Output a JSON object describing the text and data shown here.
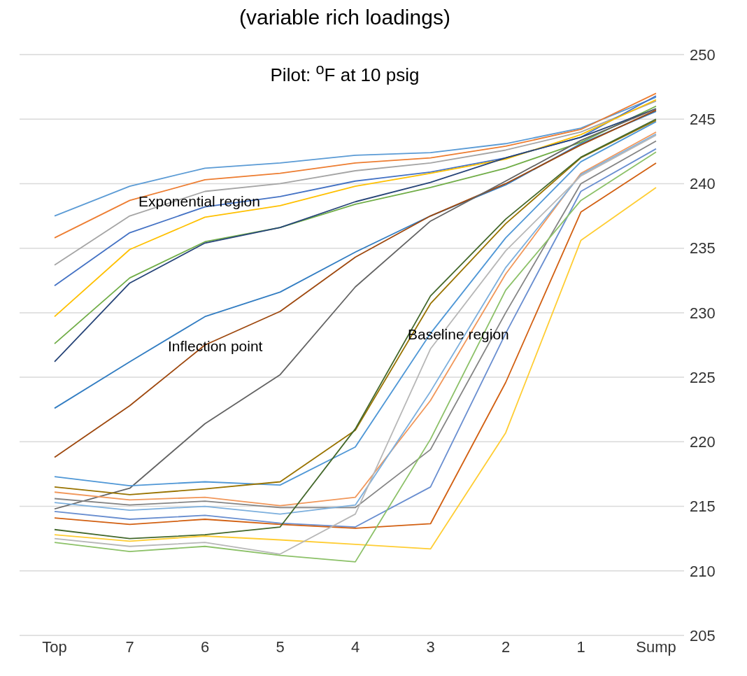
{
  "chart_data": {
    "type": "line",
    "title": "(variable rich loadings)",
    "subtitle": "Pilot:  $^{o}$F at 10 psig",
    "categories": [
      "Top",
      "7",
      "6",
      "5",
      "4",
      "3",
      "2",
      "1",
      "Sump"
    ],
    "ylim": [
      205,
      250
    ],
    "yticks": [
      205,
      210,
      215,
      220,
      225,
      230,
      235,
      240,
      245,
      250
    ],
    "grid": "y",
    "annotations": [
      "Exponential region",
      "Inflection point",
      "Baseline region"
    ],
    "series": [
      {
        "color": "#5b9bd5",
        "values": [
          237.5,
          239.8,
          241.2,
          241.6,
          242.2,
          242.4,
          243.1,
          244.3,
          246.7
        ]
      },
      {
        "color": "#ed7d31",
        "values": [
          235.8,
          238.7,
          240.3,
          240.8,
          241.6,
          242.0,
          242.9,
          244.2,
          247.0
        ]
      },
      {
        "color": "#a5a5a5",
        "values": [
          233.7,
          237.5,
          239.4,
          240.0,
          241.0,
          241.6,
          242.6,
          244.0,
          246.4
        ]
      },
      {
        "color": "#4472c4",
        "values": [
          232.1,
          236.2,
          238.2,
          239.0,
          240.2,
          240.9,
          242.0,
          243.6,
          246.8
        ]
      },
      {
        "color": "#ffc000",
        "values": [
          229.7,
          234.9,
          237.4,
          238.3,
          239.8,
          240.8,
          241.9,
          243.8,
          246.5
        ]
      },
      {
        "color": "#70ad47",
        "values": [
          227.6,
          232.7,
          235.5,
          236.6,
          238.4,
          239.7,
          241.2,
          243.2,
          246.0
        ]
      },
      {
        "color": "#264478",
        "values": [
          226.2,
          232.3,
          235.4,
          236.6,
          238.6,
          240.1,
          242.0,
          243.6,
          245.8
        ]
      },
      {
        "color": "#327dc2",
        "values": [
          222.6,
          226.2,
          229.7,
          231.6,
          234.7,
          237.5,
          239.9,
          243.1,
          245.6
        ]
      },
      {
        "color": "#9e480e",
        "values": [
          218.8,
          222.8,
          227.5,
          230.1,
          234.3,
          237.5,
          240.0,
          243.0,
          245.7
        ]
      },
      {
        "color": "#636363",
        "values": [
          214.8,
          216.4,
          221.4,
          225.2,
          232.0,
          237.1,
          240.2,
          243.35,
          245.8
        ]
      },
      {
        "color": "#4f97d6",
        "values": [
          217.3,
          216.6,
          216.9,
          216.65,
          219.6,
          228.4,
          235.8,
          241.7,
          244.8
        ]
      },
      {
        "color": "#997300",
        "values": [
          216.5,
          215.9,
          216.35,
          216.9,
          220.9,
          230.7,
          236.9,
          242.0,
          244.9
        ]
      },
      {
        "color": "#f1975a",
        "values": [
          216.1,
          215.5,
          215.7,
          215.05,
          215.7,
          223.2,
          233.0,
          240.8,
          244.0
        ]
      },
      {
        "color": "#848484",
        "values": [
          215.6,
          215.1,
          215.4,
          214.9,
          214.9,
          219.4,
          230.0,
          240.0,
          243.3
        ]
      },
      {
        "color": "#7cafdd",
        "values": [
          215.3,
          214.7,
          215.0,
          214.4,
          215.1,
          223.9,
          233.5,
          240.7,
          243.85
        ]
      },
      {
        "color": "#698ed0",
        "values": [
          214.6,
          214.0,
          214.3,
          213.7,
          213.4,
          216.5,
          228.4,
          239.4,
          242.7
        ]
      },
      {
        "color": "#d26012",
        "values": [
          214.1,
          213.6,
          214.0,
          213.6,
          213.3,
          213.65,
          224.6,
          237.8,
          241.6
        ]
      },
      {
        "color": "#43682b",
        "values": [
          213.2,
          212.5,
          212.8,
          213.4,
          221.0,
          231.3,
          237.25,
          242.05,
          245.0
        ]
      },
      {
        "color": "#ffcd33",
        "values": [
          212.8,
          212.3,
          212.7,
          212.4,
          212.05,
          211.7,
          220.7,
          235.6,
          239.7
        ]
      },
      {
        "color": "#b7b7b7",
        "values": [
          212.5,
          211.9,
          212.2,
          211.3,
          214.4,
          227.2,
          234.8,
          240.6,
          243.75
        ]
      },
      {
        "color": "#8cc168",
        "values": [
          212.2,
          211.5,
          211.9,
          211.2,
          210.7,
          220.2,
          231.75,
          238.7,
          242.45
        ]
      }
    ]
  }
}
